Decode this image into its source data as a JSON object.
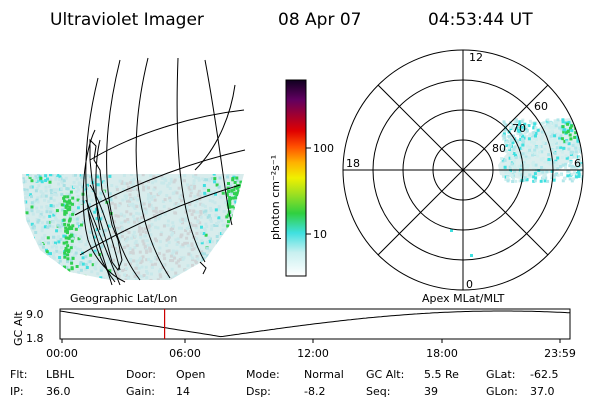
{
  "header": {
    "instrument": "Ultraviolet Imager",
    "date": "08 Apr 07",
    "time": "04:53:44 UT"
  },
  "left_panel": {
    "caption": "Geographic Lat/Lon"
  },
  "right_panel": {
    "caption": "Apex MLat/MLT",
    "mlt_labels": {
      "top": "12",
      "left": "18",
      "right": "6",
      "bottom": "0"
    },
    "mlat_labels": [
      "60",
      "70",
      "80"
    ]
  },
  "colorbar": {
    "unit_label": "photon cm⁻²s⁻¹",
    "ticks": [
      "100",
      "10"
    ]
  },
  "altitude_plot": {
    "ylabel": "GC Alt",
    "y_ticks": [
      "9.0",
      "1.8"
    ],
    "x_ticks": [
      "00:00",
      "06:00",
      "12:00",
      "18:00",
      "23:59"
    ],
    "current_time_fraction": 0.205
  },
  "status": {
    "row1": [
      {
        "label": "Flt:",
        "value": "LBHL"
      },
      {
        "label": "Door:",
        "value": "Open"
      },
      {
        "label": "Mode:",
        "value": "Normal"
      },
      {
        "label": "GC Alt:",
        "value": "5.5 Re"
      },
      {
        "label": "GLat:",
        "value": "-62.5"
      }
    ],
    "row2": [
      {
        "label": "IP:",
        "value": "36.0"
      },
      {
        "label": "Gain:",
        "value": "14"
      },
      {
        "label": "Dsp:",
        "value": "-8.2"
      },
      {
        "label": "Seq:",
        "value": "39"
      },
      {
        "label": "GLon:",
        "value": "37.0"
      }
    ]
  },
  "colors": {
    "indicator_line": "#cc0000",
    "aurora_bg": "#c8e8ea",
    "aurora_cyan": "#40e0e0",
    "aurora_green": "#30d050"
  }
}
